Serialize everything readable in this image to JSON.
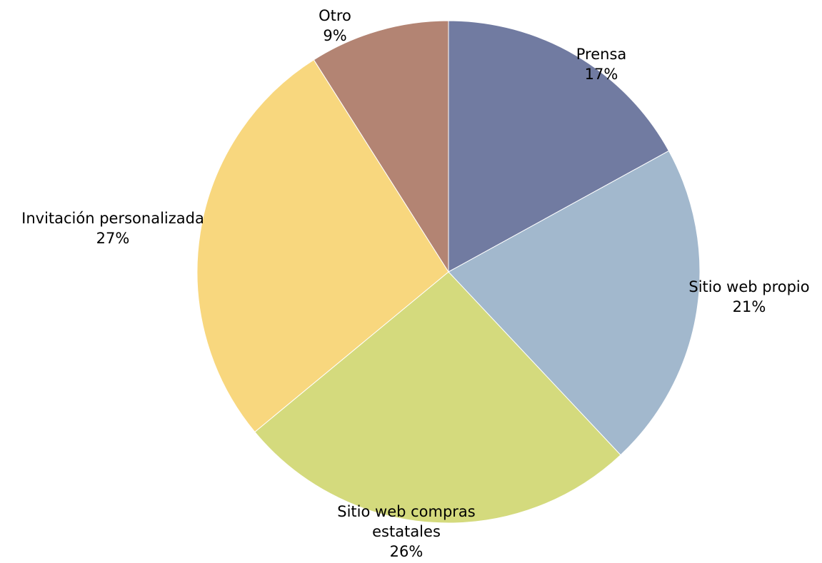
{
  "chart_data": {
    "type": "pie",
    "categories": [
      "Prensa",
      "Sitio web propio",
      "Sitio web compras estatales",
      "Invitación personalizada",
      "Otro"
    ],
    "values": [
      17,
      21,
      26,
      27,
      9
    ],
    "value_format": "percent",
    "colors": [
      "#717ba1",
      "#a2b8cd",
      "#d4da7d",
      "#f8d77e",
      "#b38473"
    ],
    "start_angle_deg": 0,
    "direction": "clockwise",
    "legend": "none",
    "labels": [
      {
        "lines": [
          "Prensa"
        ],
        "pct": "17%"
      },
      {
        "lines": [
          "Sitio web propio"
        ],
        "pct": "21%"
      },
      {
        "lines": [
          "Sitio web compras",
          "estatales"
        ],
        "pct": "26%"
      },
      {
        "lines": [
          "Invitación personalizada"
        ],
        "pct": "27%"
      },
      {
        "lines": [
          "Otro"
        ],
        "pct": "9%"
      }
    ]
  }
}
